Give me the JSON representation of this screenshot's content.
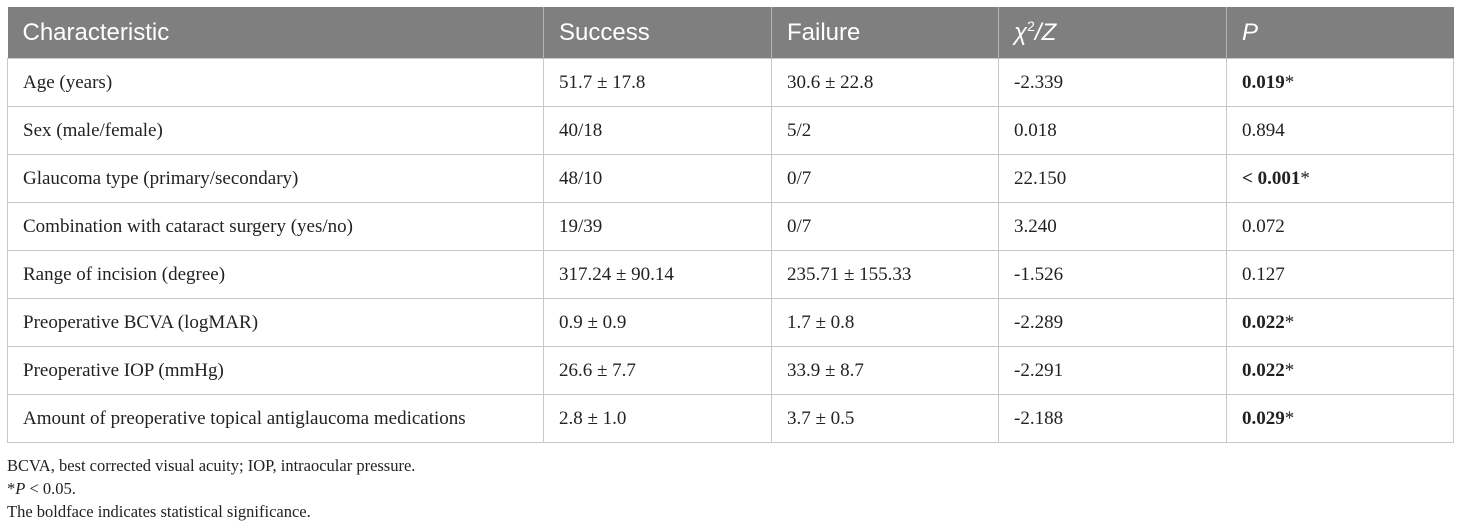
{
  "table": {
    "headers": [
      {
        "text": "Characteristic",
        "italic": false
      },
      {
        "text": "Success",
        "italic": false
      },
      {
        "text": "Failure",
        "italic": false
      },
      {
        "text": "χ²/Z",
        "italic": true
      },
      {
        "text": "P",
        "italic": true
      }
    ],
    "rows": [
      {
        "characteristic": "Age (years)",
        "success": "51.7 ± 17.8",
        "failure": "30.6 ± 22.8",
        "stat": "-2.339",
        "p": "0.019",
        "p_mark": "*",
        "significant": true
      },
      {
        "characteristic": "Sex (male/female)",
        "success": "40/18",
        "failure": "5/2",
        "stat": "0.018",
        "p": "0.894",
        "p_mark": "",
        "significant": false
      },
      {
        "characteristic": "Glaucoma type (primary/secondary)",
        "success": "48/10",
        "failure": "0/7",
        "stat": "22.150",
        "p": "< 0.001",
        "p_mark": "*",
        "significant": true
      },
      {
        "characteristic": "Combination with cataract surgery (yes/no)",
        "success": "19/39",
        "failure": "0/7",
        "stat": "3.240",
        "p": "0.072",
        "p_mark": "",
        "significant": false
      },
      {
        "characteristic": "Range of incision (degree)",
        "success": "317.24 ± 90.14",
        "failure": "235.71 ± 155.33",
        "stat": "-1.526",
        "p": "0.127",
        "p_mark": "",
        "significant": false
      },
      {
        "characteristic": "Preoperative BCVA (logMAR)",
        "success": "0.9 ± 0.9",
        "failure": "1.7 ± 0.8",
        "stat": "-2.289",
        "p": "0.022",
        "p_mark": "*",
        "significant": true
      },
      {
        "characteristic": "Preoperative IOP (mmHg)",
        "success": "26.6 ± 7.7",
        "failure": "33.9 ± 8.7",
        "stat": "-2.291",
        "p": "0.022",
        "p_mark": "*",
        "significant": true
      },
      {
        "characteristic": "Amount of preoperative topical antiglaucoma medications",
        "success": "2.8 ± 1.0",
        "failure": "3.7 ± 0.5",
        "stat": "-2.188",
        "p": "0.029",
        "p_mark": "*",
        "significant": true
      }
    ]
  },
  "footnotes": {
    "abbreviations": "BCVA, best corrected visual acuity; IOP, intraocular pressure.",
    "significance_mark": "*",
    "significance_p": "P",
    "significance_rest": " < 0.05.",
    "boldface_note": "The boldface indicates statistical significance."
  },
  "colors": {
    "header_bg": "#7f7f7f",
    "header_text": "#ffffff",
    "border": "#c8c8c8"
  }
}
